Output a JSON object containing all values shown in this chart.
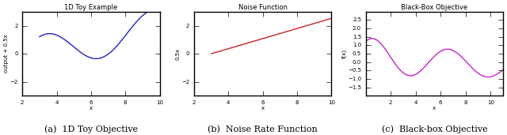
{
  "fig_width": 6.4,
  "fig_height": 1.71,
  "dpi": 100,
  "subplot1": {
    "title": "1D Toy Example",
    "xlabel": "x",
    "ylabel": "output + 0.5x",
    "xlim": [
      3,
      10
    ],
    "ylim": [
      -3,
      3
    ],
    "xticks": [
      2,
      4,
      6,
      8,
      10
    ],
    "yticks": [
      -2,
      0,
      2
    ],
    "color": "#2222cc",
    "linewidth": 1.0
  },
  "subplot2": {
    "title": "Noise Function",
    "xlabel": "x",
    "ylabel": "0.5x",
    "xlim": [
      3,
      10
    ],
    "ylim": [
      -3,
      3
    ],
    "xticks": [
      2,
      4,
      6,
      8,
      10
    ],
    "yticks": [
      -2,
      0,
      2
    ],
    "color": "#cc2222",
    "linewidth": 1.0
  },
  "subplot3": {
    "title": "Black-Box Objective",
    "xlabel": "x",
    "ylabel": "f(x)",
    "xlim": [
      0,
      11
    ],
    "ylim": [
      -2.0,
      3.0
    ],
    "xticks": [
      2,
      4,
      6,
      8,
      10
    ],
    "yticks": [
      -1.5,
      -1.0,
      -0.5,
      0.0,
      0.5,
      1.0,
      1.5,
      2.0,
      2.5
    ],
    "color": "#cc22cc",
    "linewidth": 1.0
  },
  "caption1": "(a)  1D Toy Objective",
  "caption2": "(b)  Noise Rate Function",
  "caption3": "(c)  Black-box Objective",
  "caption_fontsize": 8,
  "title_fontsize": 6,
  "label_fontsize": 5,
  "tick_fontsize": 5
}
